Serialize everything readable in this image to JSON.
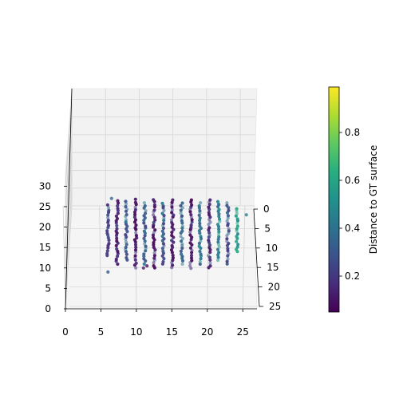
{
  "chart_data": {
    "type": "scatter",
    "projection": "3d",
    "axes": {
      "x": {
        "ticks": [
          0,
          5,
          10,
          15,
          20,
          25
        ],
        "range": [
          0,
          27
        ]
      },
      "y": {
        "ticks": [
          0,
          5,
          10,
          15,
          20,
          25
        ],
        "range": [
          0,
          25
        ]
      },
      "z": {
        "ticks": [
          0,
          5,
          10,
          15,
          20,
          25,
          30
        ],
        "range": [
          0,
          33
        ]
      }
    },
    "grid": true,
    "colormap": "viridis",
    "colorbar": {
      "label": "Distance to GT surface",
      "ticks": [
        0.2,
        0.4,
        0.6,
        0.8
      ],
      "range": [
        0.05,
        0.99
      ],
      "placement": "right"
    },
    "points_description": "approximately 15 vertical columns of points spanning x≈5–25 and z≈10–27, mostly dark purple (low distance) with blue-green values toward the right side",
    "columns": [
      {
        "x": 6,
        "z_bottom": 13,
        "z_top": 26,
        "value": 0.22
      },
      {
        "x": 7.3,
        "z_bottom": 11,
        "z_top": 27,
        "value": 0.12
      },
      {
        "x": 8.6,
        "z_bottom": 12,
        "z_top": 26.5,
        "value": 0.28
      },
      {
        "x": 9.9,
        "z_bottom": 10,
        "z_top": 27,
        "value": 0.1
      },
      {
        "x": 11.2,
        "z_bottom": 11,
        "z_top": 26.5,
        "value": 0.3
      },
      {
        "x": 12.5,
        "z_bottom": 10,
        "z_top": 27,
        "value": 0.08
      },
      {
        "x": 13.8,
        "z_bottom": 11,
        "z_top": 26.5,
        "value": 0.26
      },
      {
        "x": 15.1,
        "z_bottom": 10,
        "z_top": 27,
        "value": 0.07
      },
      {
        "x": 16.4,
        "z_bottom": 11,
        "z_top": 26.5,
        "value": 0.32
      },
      {
        "x": 17.7,
        "z_bottom": 10,
        "z_top": 27,
        "value": 0.09
      },
      {
        "x": 19.0,
        "z_bottom": 11,
        "z_top": 26.5,
        "value": 0.36
      },
      {
        "x": 20.3,
        "z_bottom": 10,
        "z_top": 27,
        "value": 0.15
      },
      {
        "x": 21.6,
        "z_bottom": 12,
        "z_top": 26.5,
        "value": 0.45
      },
      {
        "x": 22.9,
        "z_bottom": 11,
        "z_top": 26,
        "value": 0.25
      },
      {
        "x": 24.2,
        "z_bottom": 14,
        "z_top": 25,
        "value": 0.55
      }
    ],
    "outliers": [
      {
        "x": 6,
        "z": 9,
        "value": 0.3
      },
      {
        "x": 11,
        "z": 10,
        "value": 0.12
      },
      {
        "x": 11.5,
        "z": 10.5,
        "value": 0.08
      },
      {
        "x": 6.5,
        "z": 27,
        "value": 0.35
      },
      {
        "x": 25.5,
        "z": 23,
        "value": 0.45
      }
    ]
  }
}
